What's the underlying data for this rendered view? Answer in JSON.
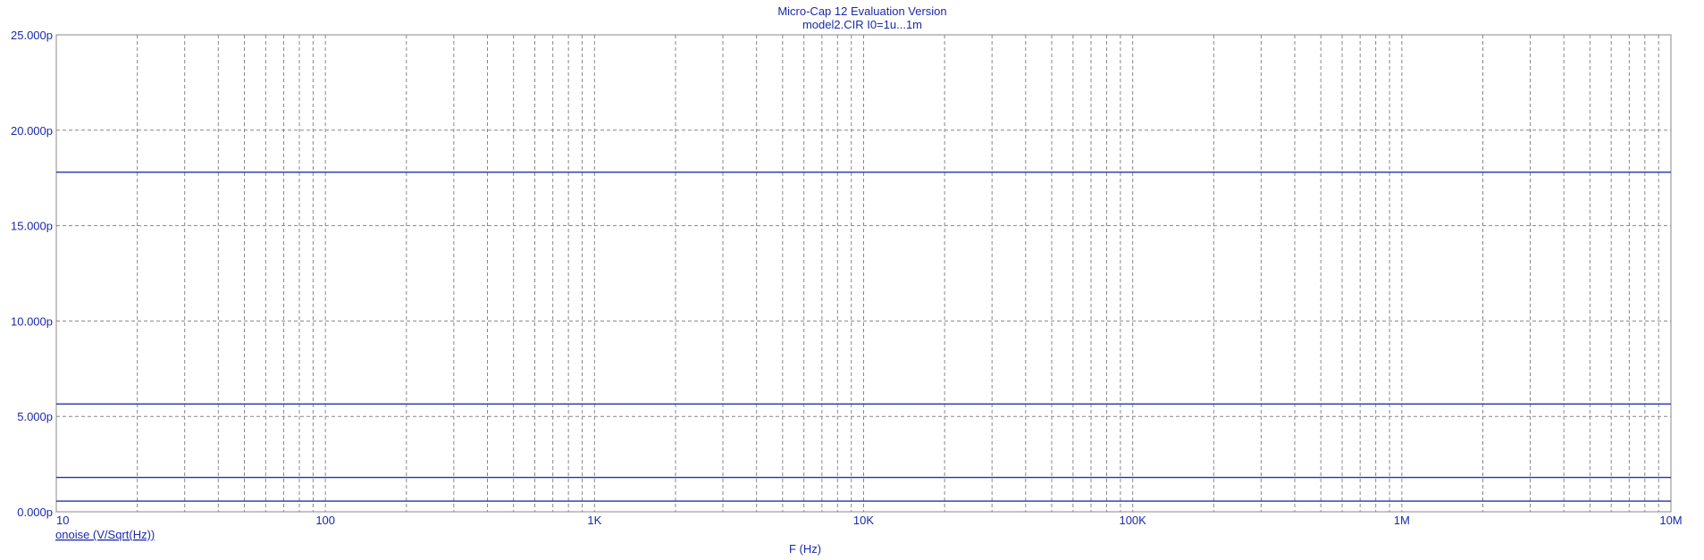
{
  "window": {
    "title_line1": "Micro-Cap 12 Evaluation Version",
    "title_line2": "model2.CIR I0=1u...1m"
  },
  "colors": {
    "axis": "#1a2aa8",
    "trace": "#2233aa",
    "grid": "#888888",
    "background": "#ffffff"
  },
  "chart_data": {
    "type": "line",
    "xscale": "log",
    "xlim": [
      10,
      10000000
    ],
    "ylim": [
      0,
      25
    ],
    "y_unit": "p",
    "grid": true,
    "xlabel": "F (Hz)",
    "legend": [
      "onoise (V/Sqrt(Hz))"
    ],
    "xticks": [
      {
        "value": 10,
        "label": "10"
      },
      {
        "value": 100,
        "label": "100"
      },
      {
        "value": 1000,
        "label": "1K"
      },
      {
        "value": 10000,
        "label": "10K"
      },
      {
        "value": 100000,
        "label": "100K"
      },
      {
        "value": 1000000,
        "label": "1M"
      },
      {
        "value": 10000000,
        "label": "10M"
      }
    ],
    "yticks": [
      {
        "value": 0,
        "label": "0.000p"
      },
      {
        "value": 5,
        "label": "5.000p"
      },
      {
        "value": 10,
        "label": "10.000p"
      },
      {
        "value": 15,
        "label": "15.000p"
      },
      {
        "value": 20,
        "label": "20.000p"
      },
      {
        "value": 25,
        "label": "25.000p"
      }
    ],
    "series": [
      {
        "x": [
          10,
          10000000
        ],
        "y": [
          17.8,
          17.8
        ]
      },
      {
        "x": [
          10,
          10000000
        ],
        "y": [
          5.65,
          5.65
        ]
      },
      {
        "x": [
          10,
          10000000
        ],
        "y": [
          1.8,
          1.8
        ]
      },
      {
        "x": [
          10,
          10000000
        ],
        "y": [
          0.56,
          0.56
        ]
      }
    ]
  }
}
